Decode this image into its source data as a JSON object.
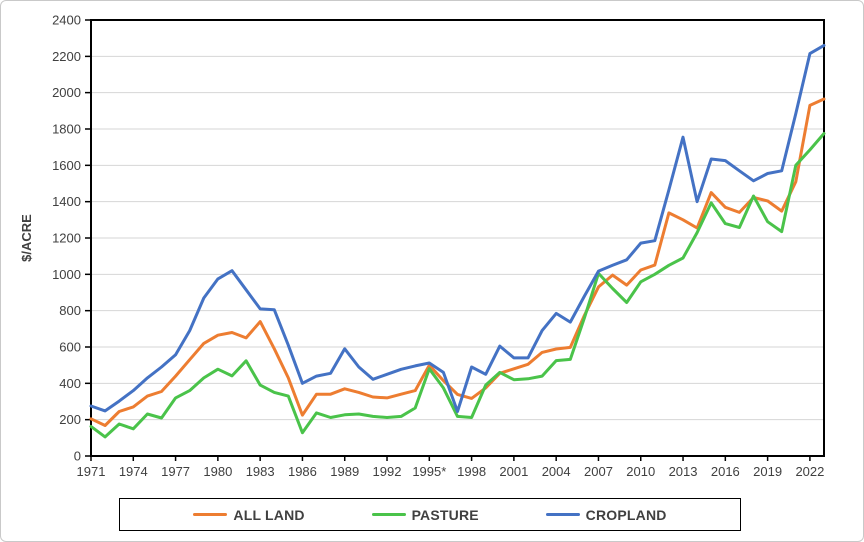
{
  "chart_data": {
    "type": "line",
    "title": "",
    "ylabel": "$/ACRE",
    "xlabel": "",
    "ylim": [
      0,
      2400
    ],
    "ytick_step": 200,
    "grid": "horizontal",
    "legend_position": "bottom",
    "x_years": [
      1971,
      1972,
      1973,
      1974,
      1975,
      1976,
      1977,
      1978,
      1979,
      1980,
      1981,
      1982,
      1983,
      1984,
      1985,
      1986,
      1987,
      1988,
      1989,
      1990,
      1991,
      1992,
      1993,
      1994,
      1995,
      1996,
      1997,
      1998,
      1999,
      2000,
      2001,
      2002,
      2003,
      2004,
      2005,
      2006,
      2007,
      2008,
      2009,
      2010,
      2011,
      2012,
      2013,
      2014,
      2015,
      2016,
      2017,
      2018,
      2019,
      2020,
      2021,
      2022,
      2023
    ],
    "x_tick_labels": [
      "1971",
      "1974",
      "1977",
      "1980",
      "1983",
      "1986",
      "1989",
      "1992",
      "1995*",
      "1998",
      "2001",
      "2004",
      "2007",
      "2010",
      "2013",
      "2016",
      "2019",
      "2022"
    ],
    "series": [
      {
        "name": "ALL LAND",
        "color": "#ED7D31",
        "values": [
          205,
          168,
          245,
          270,
          330,
          355,
          440,
          530,
          620,
          665,
          680,
          650,
          740,
          590,
          430,
          225,
          340,
          340,
          370,
          350,
          325,
          320,
          340,
          360,
          500,
          415,
          339,
          317,
          375,
          455,
          480,
          505,
          570,
          589,
          598,
          774,
          931,
          996,
          941,
          1024,
          1051,
          1338,
          1300,
          1255,
          1450,
          1369,
          1341,
          1423,
          1404,
          1348,
          1510,
          1930,
          1965
        ]
      },
      {
        "name": "PASTURE",
        "color": "#4AC34A",
        "values": [
          163,
          105,
          176,
          150,
          231,
          209,
          320,
          360,
          430,
          478,
          441,
          524,
          390,
          350,
          330,
          128,
          237,
          212,
          227,
          231,
          218,
          212,
          218,
          264,
          480,
          375,
          218,
          212,
          390,
          460,
          420,
          425,
          440,
          525,
          532,
          760,
          1005,
          922,
          845,
          959,
          1000,
          1050,
          1090,
          1230,
          1394,
          1279,
          1258,
          1431,
          1290,
          1235,
          1600,
          1685,
          1775
        ]
      },
      {
        "name": "CROPLAND",
        "color": "#4472C4",
        "values": [
          275,
          248,
          302,
          360,
          430,
          490,
          557,
          690,
          870,
          975,
          1020,
          915,
          810,
          805,
          610,
          400,
          440,
          455,
          590,
          490,
          422,
          450,
          477,
          496,
          512,
          460,
          245,
          490,
          450,
          605,
          540,
          540,
          690,
          785,
          737,
          880,
          1018,
          1050,
          1080,
          1172,
          1185,
          1465,
          1755,
          1400,
          1635,
          1626,
          1570,
          1515,
          1555,
          1570,
          1885,
          2215,
          2260
        ]
      }
    ]
  }
}
